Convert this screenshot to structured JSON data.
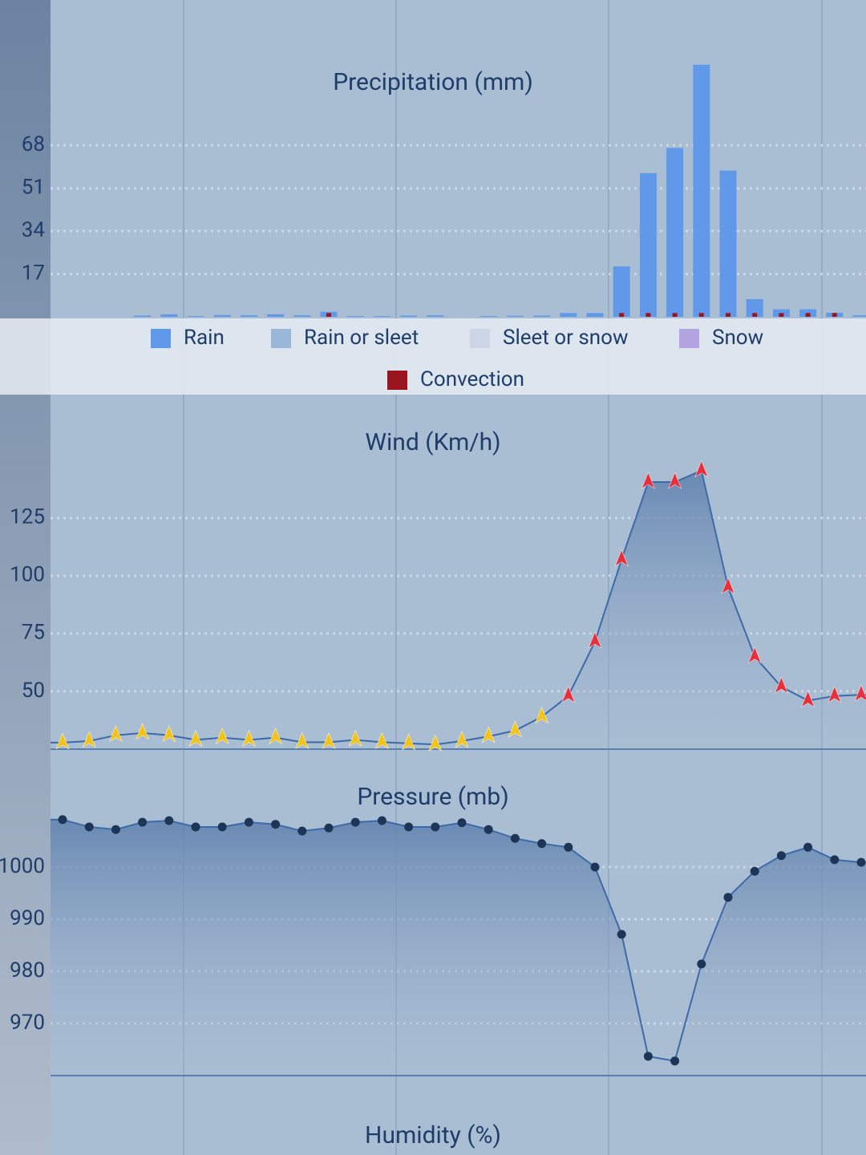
{
  "chart_data": [
    {
      "type": "bar",
      "title": "Precipitation (mm)",
      "categories": [
        null,
        null,
        null,
        null,
        null,
        null,
        null,
        null,
        null,
        null,
        null,
        null,
        null,
        null,
        null,
        null,
        null,
        null,
        null,
        null,
        null,
        null,
        null,
        null,
        null,
        null,
        null,
        null,
        null,
        null,
        null
      ],
      "series": [
        {
          "name": "Rain",
          "color": "#6199ea",
          "values": [
            0,
            0,
            0,
            0.5,
            1,
            0.3,
            0.7,
            0.6,
            1,
            0.6,
            2,
            0.3,
            0.3,
            0.5,
            0.6,
            0,
            0.3,
            0.4,
            0.5,
            1.5,
            1.5,
            20,
            57,
            67,
            100,
            58,
            7,
            3,
            3,
            1.6,
            0.6
          ]
        },
        {
          "name": "Rain or sleet",
          "color": "#9ab6d8",
          "values": [
            0,
            0,
            0,
            0,
            0,
            0,
            0,
            0,
            0,
            0,
            0,
            0,
            0,
            0,
            0,
            0,
            0,
            0,
            0,
            0,
            0,
            0,
            0,
            0,
            0,
            0,
            0,
            0,
            0,
            0,
            0
          ]
        },
        {
          "name": "Sleet or snow",
          "color": "#ccd6e6",
          "values": [
            0,
            0,
            0,
            0,
            0,
            0,
            0,
            0,
            0,
            0,
            0,
            0,
            0,
            0,
            0,
            0,
            0,
            0,
            0,
            0,
            0,
            0,
            0,
            0,
            0,
            0,
            0,
            0,
            0,
            0,
            0
          ]
        },
        {
          "name": "Snow",
          "color": "#b3a3e0",
          "values": [
            0,
            0,
            0,
            0,
            0,
            0,
            0,
            0,
            0,
            0,
            0,
            0,
            0,
            0,
            0,
            0,
            0,
            0,
            0,
            0,
            0,
            0,
            0,
            0,
            0,
            0,
            0,
            0,
            0,
            0,
            0
          ]
        },
        {
          "name": "Convection",
          "color": "#9b1520",
          "values": [
            0,
            0,
            0,
            0,
            0,
            0,
            0,
            0,
            0,
            0,
            1.5,
            0,
            0,
            0,
            0,
            0,
            0,
            0,
            0,
            0,
            0,
            1.5,
            1.5,
            1.5,
            1.5,
            1.5,
            1.5,
            1.5,
            1.5,
            1.5,
            0
          ]
        }
      ],
      "ylim": [
        0,
        105
      ],
      "yticks": [
        17,
        34,
        51,
        68
      ],
      "grid": true
    },
    {
      "type": "line",
      "title": "Wind (Km/h)",
      "categories": [
        null,
        null,
        null,
        null,
        null,
        null,
        null,
        null,
        null,
        null,
        null,
        null,
        null,
        null,
        null,
        null,
        null,
        null,
        null,
        null,
        null,
        null,
        null,
        null,
        null,
        null,
        null,
        null,
        null,
        null,
        null
      ],
      "values": [
        27.8,
        28.5,
        31,
        32,
        31,
        29,
        30,
        29,
        30,
        28,
        28,
        29,
        28,
        27.5,
        27,
        28.5,
        30.5,
        33,
        39,
        48,
        71.5,
        107,
        140.5,
        140.5,
        145.5,
        95,
        65,
        52,
        46,
        48,
        48.5
      ],
      "color": "#3d6aa8",
      "marker_colors": [
        "#f2c318",
        "#f2c318",
        "#f2c318",
        "#f2c318",
        "#f2c318",
        "#f2c318",
        "#f2c318",
        "#f2c318",
        "#f2c318",
        "#f2c318",
        "#f2c318",
        "#f2c318",
        "#f2c318",
        "#f2c318",
        "#f2c318",
        "#f2c318",
        "#f2c318",
        "#f2c318",
        "#f2c318",
        "#e8303c",
        "#e8303c",
        "#e8303c",
        "#e8303c",
        "#e8303c",
        "#e8303c",
        "#e8303c",
        "#e8303c",
        "#e8303c",
        "#e8303c",
        "#e8303c",
        "#e8303c"
      ],
      "ylim": [
        25,
        170
      ],
      "yticks": [
        50,
        75,
        100,
        125
      ],
      "grid": true
    },
    {
      "type": "line",
      "title": "Pressure (mb)",
      "categories": [
        null,
        null,
        null,
        null,
        null,
        null,
        null,
        null,
        null,
        null,
        null,
        null,
        null,
        null,
        null,
        null,
        null,
        null,
        null,
        null,
        null,
        null,
        null,
        null,
        null,
        null,
        null,
        null,
        null,
        null,
        null
      ],
      "values": [
        1009.1,
        1007.7,
        1007.2,
        1008.6,
        1008.9,
        1007.7,
        1007.7,
        1008.6,
        1008.2,
        1006.9,
        1007.5,
        1008.6,
        1008.9,
        1007.7,
        1007.7,
        1008.5,
        1007.2,
        1005.5,
        1004.5,
        1003.8,
        1000,
        987.1,
        963.7,
        962.8,
        981.4,
        994.2,
        999.2,
        1002.2,
        1003.8,
        1001.4,
        1000.9
      ],
      "color": "#3d6aa8",
      "marker_color": "#1d3557",
      "ylim": [
        960,
        1018
      ],
      "yticks": [
        970,
        980,
        990,
        1000
      ],
      "grid": true
    },
    {
      "type": "line",
      "title": "Humidity (%)"
    }
  ]
}
